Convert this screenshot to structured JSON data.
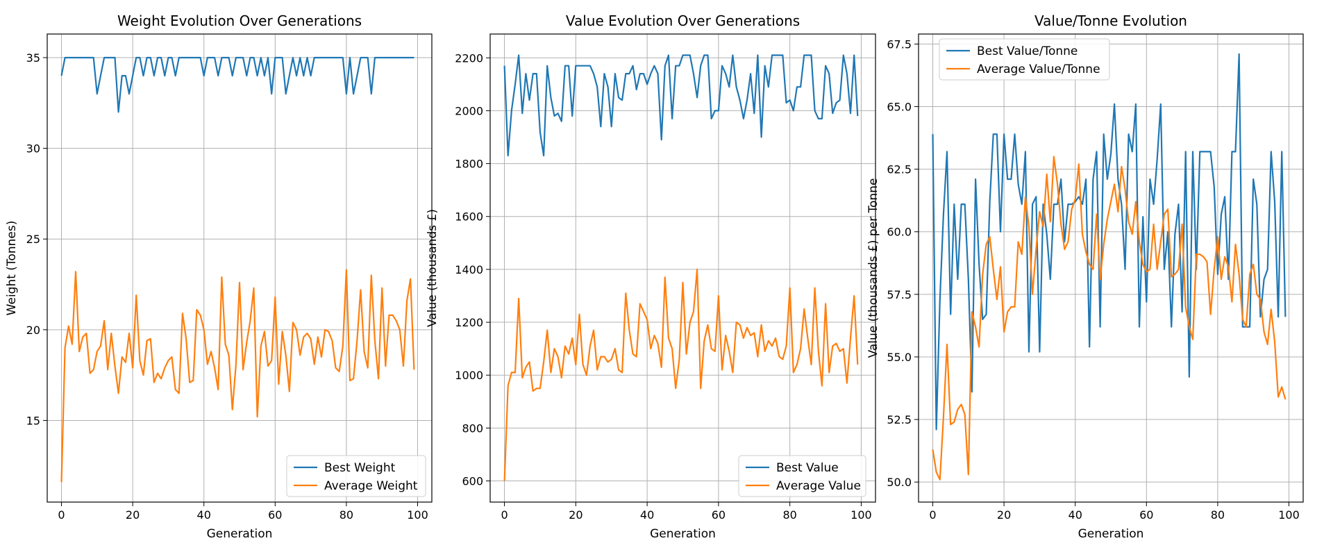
{
  "chart_data": [
    {
      "type": "line",
      "title": "Weight Evolution Over Generations",
      "xlabel": "Generation",
      "ylabel": "Weight (Tonnes)",
      "xlim": [
        -4,
        104
      ],
      "ylim": [
        10.5,
        36.3
      ],
      "xticks": [
        0,
        20,
        40,
        60,
        80,
        100
      ],
      "yticks": [
        15,
        20,
        25,
        30,
        35
      ],
      "ytick_labels": [
        "15",
        "20",
        "25",
        "30",
        "35"
      ],
      "grid": true,
      "legend_position": "lower right",
      "series": [
        {
          "name": "Best Weight",
          "color": "#1f77b4",
          "values": [
            34,
            35,
            35,
            35,
            35,
            35,
            35,
            35,
            35,
            35,
            33,
            34,
            35,
            35,
            35,
            35,
            32,
            34,
            34,
            33,
            34,
            35,
            35,
            34,
            35,
            35,
            34,
            35,
            35,
            34,
            35,
            35,
            34,
            35,
            35,
            35,
            35,
            35,
            35,
            35,
            34,
            35,
            35,
            35,
            34,
            35,
            35,
            35,
            34,
            35,
            35,
            35,
            34,
            35,
            35,
            34,
            35,
            34,
            35,
            33,
            35,
            35,
            35,
            33,
            34,
            35,
            34,
            35,
            34,
            35,
            34,
            35,
            35,
            35,
            35,
            35,
            35,
            35,
            35,
            35,
            33,
            35,
            33,
            34,
            35,
            35,
            35,
            33,
            35,
            35,
            35,
            35,
            35,
            35,
            35,
            35,
            35,
            35,
            35,
            35
          ]
        },
        {
          "name": "Average Weight",
          "color": "#ff7f0e",
          "values": [
            11.6,
            19.0,
            20.2,
            19.2,
            23.2,
            18.8,
            19.6,
            19.8,
            17.6,
            17.8,
            18.8,
            19.1,
            20.5,
            17.8,
            19.8,
            18.0,
            16.5,
            18.5,
            18.2,
            19.8,
            17.9,
            21.9,
            18.3,
            17.5,
            19.4,
            19.5,
            17.1,
            17.6,
            17.3,
            17.9,
            18.3,
            18.5,
            16.7,
            16.5,
            20.9,
            19.5,
            17.1,
            17.2,
            21.1,
            20.8,
            20.0,
            18.1,
            18.8,
            17.9,
            16.7,
            22.9,
            19.2,
            18.6,
            15.6,
            18.1,
            22.6,
            17.8,
            19.3,
            20.5,
            22.3,
            15.2,
            19.1,
            19.9,
            18.0,
            18.3,
            21.8,
            17.0,
            19.9,
            18.6,
            16.6,
            20.4,
            20.0,
            18.6,
            19.6,
            19.8,
            19.5,
            18.1,
            19.6,
            18.5,
            20.0,
            19.9,
            19.4,
            17.9,
            17.7,
            19.1,
            23.3,
            17.2,
            17.3,
            19.4,
            22.2,
            18.8,
            17.9,
            23.0,
            19.4,
            17.3,
            22.3,
            18.0,
            20.8,
            20.8,
            20.5,
            20.0,
            18.0,
            21.6,
            22.8,
            17.8
          ]
        }
      ]
    },
    {
      "type": "line",
      "title": "Value Evolution Over Generations",
      "xlabel": "Generation",
      "ylabel": "Value (thousands £)",
      "xlim": [
        -4,
        104
      ],
      "ylim": [
        520,
        2290
      ],
      "xticks": [
        0,
        20,
        40,
        60,
        80,
        100
      ],
      "yticks": [
        600,
        800,
        1000,
        1200,
        1400,
        1600,
        1800,
        2000,
        2200
      ],
      "ytick_labels": [
        "600",
        "800",
        "1000",
        "1200",
        "1400",
        "1600",
        "1800",
        "2000",
        "2200"
      ],
      "grid": true,
      "legend_position": "lower right",
      "series": [
        {
          "name": "Best Value",
          "color": "#1f77b4",
          "values": [
            2170,
            1830,
            2000,
            2100,
            2210,
            1990,
            2140,
            2040,
            2140,
            2140,
            1920,
            1830,
            2170,
            2050,
            1980,
            1990,
            1960,
            2170,
            2170,
            1980,
            2170,
            2170,
            2170,
            2170,
            2170,
            2140,
            2090,
            1940,
            2140,
            2090,
            1940,
            2140,
            2050,
            2040,
            2140,
            2140,
            2170,
            2080,
            2140,
            2140,
            2100,
            2140,
            2170,
            2140,
            1890,
            2170,
            2210,
            1970,
            2170,
            2170,
            2210,
            2210,
            2210,
            2140,
            2050,
            2170,
            2210,
            2210,
            1970,
            2000,
            2000,
            2170,
            2140,
            2090,
            2210,
            2090,
            2040,
            1970,
            2040,
            2140,
            1990,
            2210,
            1900,
            2170,
            2090,
            2210,
            2210,
            2210,
            2210,
            2030,
            2040,
            2000,
            2090,
            2090,
            2210,
            2210,
            2210,
            2000,
            1970,
            1970,
            2170,
            2140,
            1990,
            2030,
            2040,
            2210,
            2140,
            1990,
            2210,
            1980
          ]
        },
        {
          "name": "Average Value",
          "color": "#ff7f0e",
          "values": [
            600,
            960,
            1010,
            1010,
            1290,
            990,
            1030,
            1050,
            940,
            950,
            950,
            1050,
            1170,
            1010,
            1100,
            1070,
            990,
            1110,
            1080,
            1140,
            1040,
            1230,
            1040,
            1000,
            1110,
            1170,
            1020,
            1070,
            1070,
            1050,
            1060,
            1100,
            1020,
            1010,
            1310,
            1170,
            1080,
            1070,
            1270,
            1240,
            1210,
            1100,
            1150,
            1120,
            1030,
            1370,
            1140,
            1100,
            950,
            1060,
            1350,
            1080,
            1200,
            1240,
            1400,
            950,
            1130,
            1190,
            1100,
            1090,
            1300,
            1020,
            1150,
            1090,
            1010,
            1200,
            1190,
            1140,
            1180,
            1150,
            1160,
            1070,
            1190,
            1090,
            1130,
            1110,
            1140,
            1070,
            1060,
            1110,
            1330,
            1010,
            1040,
            1100,
            1250,
            1140,
            1040,
            1330,
            1090,
            960,
            1270,
            1010,
            1110,
            1120,
            1090,
            1100,
            970,
            1140,
            1300,
            1040
          ]
        }
      ]
    },
    {
      "type": "line",
      "title": "Value/Tonne Evolution",
      "xlabel": "Generation",
      "ylabel": "Value (thousands £) per Tonne",
      "xlim": [
        -4,
        104
      ],
      "ylim": [
        49.2,
        67.9
      ],
      "xticks": [
        0,
        20,
        40,
        60,
        80,
        100
      ],
      "yticks": [
        50,
        52.5,
        55,
        57.5,
        60,
        62.5,
        65,
        67.5
      ],
      "ytick_labels": [
        "50.0",
        "52.5",
        "55.0",
        "57.5",
        "60.0",
        "62.5",
        "65.0",
        "67.5"
      ],
      "grid": true,
      "legend_position": "upper left",
      "series": [
        {
          "name": "Best Value/Tonne",
          "color": "#1f77b4",
          "values": [
            63.9,
            52.1,
            57.3,
            60.7,
            63.2,
            56.7,
            61.1,
            58.1,
            61.1,
            61.1,
            58.1,
            53.6,
            62.1,
            58.7,
            56.5,
            56.7,
            61.2,
            63.9,
            63.9,
            60.0,
            63.9,
            62.1,
            62.1,
            63.9,
            61.9,
            61.1,
            63.2,
            55.2,
            61.1,
            61.4,
            55.2,
            61.1,
            59.9,
            58.1,
            61.1,
            61.1,
            62.1,
            59.6,
            61.1,
            61.1,
            61.2,
            61.4,
            61.1,
            62.1,
            55.4,
            62.1,
            63.2,
            56.2,
            63.9,
            62.1,
            63.1,
            65.1,
            62.1,
            61.1,
            58.5,
            63.9,
            63.2,
            65.1,
            56.2,
            60.6,
            57.2,
            62.1,
            61.1,
            62.9,
            65.1,
            58.5,
            60.0,
            56.2,
            59.9,
            61.1,
            56.8,
            63.2,
            54.2,
            63.2,
            58.5,
            63.2,
            63.2,
            63.2,
            63.2,
            61.8,
            58.3,
            60.7,
            61.4,
            58.1,
            63.2,
            63.2,
            67.1,
            56.2,
            56.2,
            56.2,
            62.1,
            61.1,
            56.6,
            58.1,
            58.5,
            63.2,
            61.2,
            56.6,
            63.2,
            56.6
          ]
        },
        {
          "name": "Average Value/Tonne",
          "color": "#ff7f0e",
          "values": [
            51.3,
            50.4,
            50.1,
            52.6,
            55.5,
            52.3,
            52.4,
            52.9,
            53.1,
            52.7,
            50.3,
            56.8,
            56.2,
            55.4,
            58.3,
            59.5,
            59.8,
            58.5,
            57.3,
            58.6,
            56.0,
            56.8,
            57.0,
            57.0,
            59.6,
            59.1,
            61.4,
            60.2,
            57.5,
            59.3,
            60.8,
            60.2,
            62.3,
            60.4,
            63.0,
            61.9,
            60.3,
            59.3,
            59.6,
            60.9,
            61.3,
            62.7,
            59.9,
            59.2,
            58.7,
            58.5,
            60.7,
            58.1,
            59.5,
            60.5,
            61.2,
            61.9,
            60.8,
            62.6,
            61.7,
            60.4,
            59.9,
            61.2,
            59.6,
            58.7,
            58.4,
            58.5,
            60.3,
            58.5,
            59.6,
            60.7,
            60.9,
            58.2,
            58.3,
            58.5,
            60.3,
            57.0,
            56.2,
            55.7,
            59.1,
            59.1,
            59.0,
            58.8,
            56.7,
            58.5,
            59.8,
            58.1,
            59.0,
            58.6,
            57.2,
            59.5,
            58.3,
            56.5,
            56.2,
            58.3,
            58.7,
            57.5,
            57.3,
            56.0,
            55.5,
            56.9,
            55.6,
            53.4,
            53.8,
            53.3
          ]
        }
      ]
    }
  ]
}
